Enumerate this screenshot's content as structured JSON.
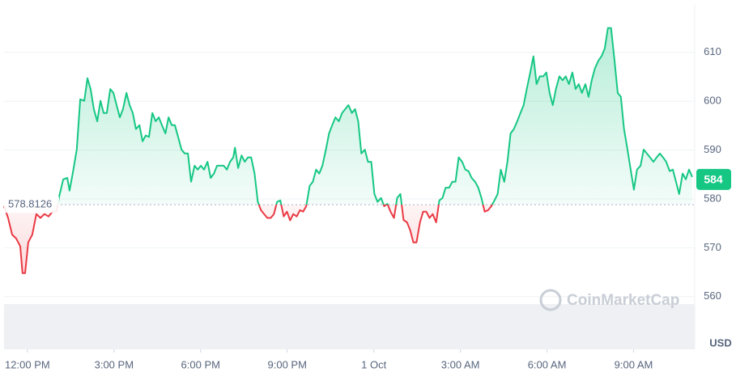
{
  "chart_data": {
    "type": "line",
    "x": [
      -0.81,
      -0.67,
      -0.53,
      -0.39,
      -0.25,
      -0.17,
      -0.08,
      0.03,
      0.17,
      0.31,
      0.45,
      0.59,
      0.73,
      0.87,
      1.01,
      1.1,
      1.24,
      1.38,
      1.46,
      1.57,
      1.71,
      1.83,
      1.97,
      2.08,
      2.19,
      2.3,
      2.42,
      2.53,
      2.64,
      2.75,
      2.87,
      2.98,
      3.09,
      3.2,
      3.31,
      3.43,
      3.54,
      3.65,
      3.76,
      3.88,
      3.99,
      4.1,
      4.21,
      4.33,
      4.44,
      4.55,
      4.66,
      4.78,
      4.89,
      5.0,
      5.11,
      5.22,
      5.34,
      5.45,
      5.56,
      5.67,
      5.79,
      5.9,
      6.01,
      6.12,
      6.24,
      6.35,
      6.46,
      6.57,
      6.69,
      6.8,
      6.91,
      7.02,
      7.13,
      7.19,
      7.3,
      7.42,
      7.53,
      7.64,
      7.75,
      7.87,
      7.98,
      8.09,
      8.2,
      8.31,
      8.43,
      8.54,
      8.65,
      8.76,
      8.88,
      8.99,
      9.1,
      9.21,
      9.33,
      9.44,
      9.55,
      9.66,
      9.78,
      9.89,
      10.0,
      10.11,
      10.22,
      10.34,
      10.45,
      10.56,
      10.67,
      10.79,
      10.9,
      11.01,
      11.12,
      11.24,
      11.35,
      11.46,
      11.57,
      11.69,
      11.8,
      11.91,
      12.02,
      12.13,
      12.25,
      12.36,
      12.47,
      12.58,
      12.7,
      12.81,
      12.92,
      13.03,
      13.15,
      13.26,
      13.37,
      13.48,
      13.6,
      13.71,
      13.82,
      13.93,
      14.04,
      14.16,
      14.27,
      14.38,
      14.49,
      14.61,
      14.72,
      14.83,
      14.94,
      15.06,
      15.17,
      15.28,
      15.39,
      15.51,
      15.62,
      15.73,
      15.84,
      15.96,
      16.07,
      16.18,
      16.29,
      16.4,
      16.52,
      16.63,
      16.74,
      16.85,
      16.97,
      17.08,
      17.19,
      17.3,
      17.42,
      17.53,
      17.64,
      17.75,
      17.87,
      17.98,
      18.09,
      18.2,
      18.31,
      18.43,
      18.54,
      18.65,
      18.76,
      18.88,
      18.99,
      19.1,
      19.21,
      19.33,
      19.44,
      19.55,
      19.66,
      19.78,
      19.89,
      20.0,
      20.11,
      20.22,
      20.34,
      20.45,
      20.56,
      20.67,
      20.79,
      20.9,
      21.01,
      21.12,
      21.24,
      21.35,
      21.46,
      21.57,
      21.69,
      21.8,
      21.91,
      22.02,
      22.13,
      22.25,
      22.36,
      22.47,
      22.58,
      22.7,
      22.81,
      22.92,
      23.03
    ],
    "values": [
      578.5,
      576.1,
      572.7,
      571.9,
      570.3,
      564.8,
      564.8,
      571.1,
      572.7,
      576.9,
      576.1,
      576.9,
      576.4,
      577.4,
      577.4,
      580.5,
      584.0,
      584.3,
      581.7,
      585.2,
      590.1,
      600.4,
      600.1,
      604.7,
      602.5,
      598.4,
      595.9,
      600.1,
      597.6,
      597.6,
      602.5,
      601.7,
      599.2,
      596.7,
      598.4,
      601.7,
      599.2,
      597.6,
      594.3,
      595.1,
      591.8,
      593.0,
      592.7,
      597.6,
      595.9,
      596.7,
      595.1,
      593.4,
      596.7,
      595.1,
      595.1,
      592.7,
      590.1,
      589.3,
      589.3,
      583.5,
      586.8,
      586.0,
      586.8,
      586.0,
      587.6,
      584.3,
      585.2,
      586.8,
      586.8,
      586.8,
      586.0,
      587.6,
      588.5,
      590.5,
      586.3,
      588.9,
      587.6,
      588.5,
      588.5,
      585.2,
      579.4,
      577.7,
      576.9,
      576.1,
      576.1,
      576.9,
      579.4,
      579.7,
      576.4,
      577.4,
      575.6,
      576.9,
      576.4,
      577.7,
      577.4,
      578.5,
      582.7,
      583.5,
      586.0,
      585.2,
      586.8,
      590.1,
      593.4,
      595.1,
      596.7,
      595.9,
      597.6,
      598.4,
      599.2,
      597.6,
      598.4,
      595.9,
      589.3,
      590.1,
      587.6,
      587.6,
      581.0,
      579.4,
      580.2,
      578.5,
      579.0,
      577.4,
      576.1,
      580.2,
      581.0,
      575.7,
      575.2,
      573.6,
      571.1,
      571.1,
      575.2,
      577.4,
      577.4,
      576.1,
      576.9,
      575.2,
      579.7,
      580.2,
      582.3,
      582.3,
      583.5,
      583.5,
      588.5,
      587.6,
      586.0,
      585.7,
      584.3,
      583.5,
      582.3,
      580.2,
      577.4,
      577.7,
      578.5,
      579.7,
      581.0,
      586.0,
      583.5,
      587.6,
      593.4,
      594.3,
      595.9,
      597.6,
      599.2,
      602.5,
      605.9,
      609.2,
      603.5,
      605.1,
      605.1,
      605.9,
      601.7,
      599.2,
      602.5,
      605.1,
      604.3,
      605.1,
      603.5,
      605.9,
      602.5,
      603.5,
      601.7,
      603.5,
      600.9,
      604.3,
      606.7,
      608.3,
      609.2,
      610.8,
      615.0,
      615.0,
      608.3,
      601.7,
      600.9,
      594.3,
      590.1,
      586.0,
      581.9,
      586.0,
      586.8,
      590.1,
      589.3,
      588.5,
      587.6,
      588.5,
      589.3,
      588.5,
      587.6,
      585.7,
      586.0,
      583.5,
      581.0,
      585.2,
      584.0,
      586.0,
      584.5
    ],
    "baseline": 578.8126,
    "current_price": 584,
    "up_color": "#16c784",
    "down_color": "#ea3943",
    "xlim": [
      -0.81,
      23.14
    ],
    "ylim": [
      549.2,
      619.9
    ],
    "xticks": [
      {
        "value": 0,
        "label": "12:00 PM"
      },
      {
        "value": 3,
        "label": "3:00 PM"
      },
      {
        "value": 6,
        "label": "6:00 PM"
      },
      {
        "value": 9,
        "label": "9:00 PM"
      },
      {
        "value": 12,
        "label": "1 Oct"
      },
      {
        "value": 15,
        "label": "3:00 AM"
      },
      {
        "value": 18,
        "label": "6:00 AM"
      },
      {
        "value": 21,
        "label": "9:00 AM"
      }
    ],
    "yticks": [
      560,
      570,
      580,
      590,
      600,
      610
    ],
    "y_label": "USD",
    "watermark": "CoinMarketCap",
    "grid": true
  }
}
